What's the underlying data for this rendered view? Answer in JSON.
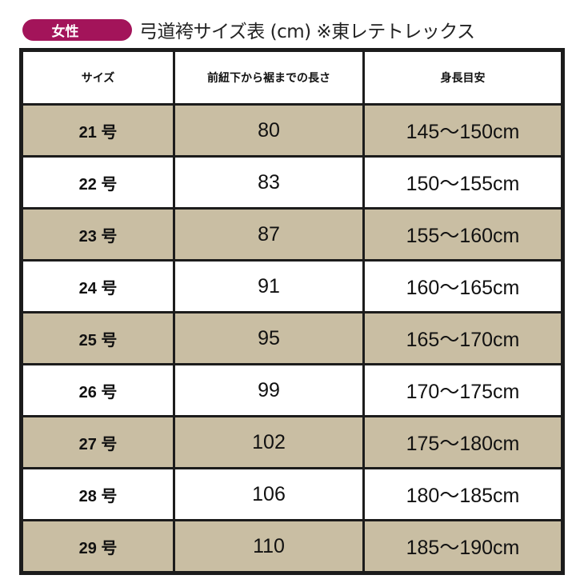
{
  "badge": "女性",
  "title": "弓道袴サイズ表 (cm) ※東レテトレックス",
  "colors": {
    "badge": "#a3145a",
    "stripe": "#c9bea3",
    "border": "#1c1c1c"
  },
  "headers": [
    "サイズ",
    "前紐下から裾までの長さ",
    "身長目安"
  ],
  "rows": [
    [
      "21 号",
      "80",
      "145～150cm"
    ],
    [
      "22 号",
      "83",
      "150～155cm"
    ],
    [
      "23 号",
      "87",
      "155～160cm"
    ],
    [
      "24 号",
      "91",
      "160～165cm"
    ],
    [
      "25 号",
      "95",
      "165～170cm"
    ],
    [
      "26 号",
      "99",
      "170～175cm"
    ],
    [
      "27 号",
      "102",
      "175～180cm"
    ],
    [
      "28 号",
      "106",
      "180～185cm"
    ],
    [
      "29 号",
      "110",
      "185～190cm"
    ]
  ]
}
